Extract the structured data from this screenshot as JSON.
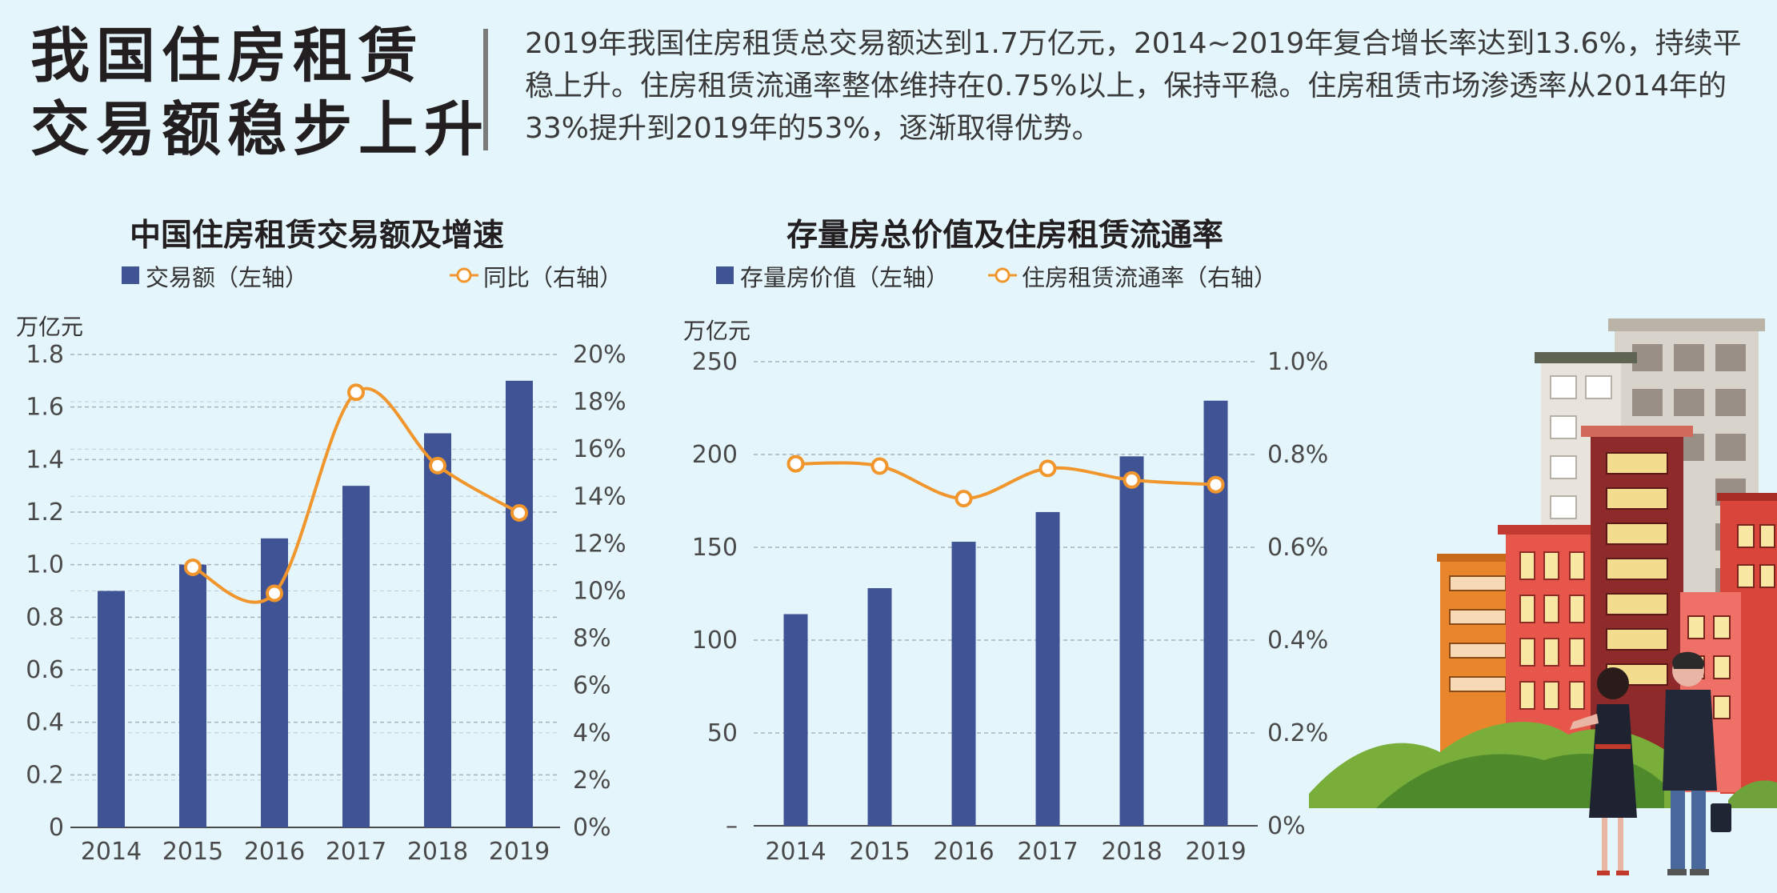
{
  "headline": {
    "line1": "我国住房租赁",
    "line2": "交易额稳步上升"
  },
  "intro": "2019年我国住房租赁总交易额达到1.7万亿元，2014~2019年复合增长率达到13.6%，持续平稳上升。住房租赁流通率整体维持在0.75%以上，保持平稳。住房租赁市场渗透率从2014年的33%提升到2019年的53%，逐渐取得优势。",
  "colors": {
    "bar": "#3f5395",
    "line": "#f0962d",
    "grid": "#a9b3b9",
    "axis": "#4a4a4a"
  },
  "chart_data": [
    {
      "type": "bar+line",
      "title": "中国住房租赁交易额及增速",
      "legend": [
        "交易额（左轴）",
        "同比（右轴）"
      ],
      "unit_left": "万亿元",
      "categories": [
        "2014",
        "2015",
        "2016",
        "2017",
        "2018",
        "2019"
      ],
      "series": [
        {
          "name": "交易额（左轴）",
          "type": "bar",
          "axis": "left",
          "values": [
            0.9,
            1.0,
            1.1,
            1.3,
            1.5,
            1.7
          ]
        },
        {
          "name": "同比（右轴）",
          "type": "line",
          "axis": "right",
          "values": [
            null,
            11.0,
            9.9,
            18.4,
            15.3,
            13.3
          ]
        }
      ],
      "ylim_left": [
        0,
        1.8
      ],
      "yticks_left": [
        "0",
        "0.2",
        "0.4",
        "0.6",
        "0.8",
        "1.0",
        "1.2",
        "1.4",
        "1.6",
        "1.8"
      ],
      "ylim_right": [
        0,
        20
      ],
      "yticks_right": [
        "0%",
        "2%",
        "4%",
        "6%",
        "8%",
        "10%",
        "12%",
        "14%",
        "16%",
        "18%",
        "20%"
      ],
      "grid": true,
      "legend_position": "top"
    },
    {
      "type": "bar+line",
      "title": "存量房总价值及住房租赁流通率",
      "legend": [
        "存量房价值（左轴）",
        "住房租赁流通率（右轴）"
      ],
      "unit_left": "万亿元",
      "categories": [
        "2014",
        "2015",
        "2016",
        "2017",
        "2018",
        "2019"
      ],
      "series": [
        {
          "name": "存量房价值（左轴）",
          "type": "bar",
          "axis": "left",
          "values": [
            114,
            128,
            153,
            169,
            199,
            229
          ]
        },
        {
          "name": "住房租赁流通率（右轴）",
          "type": "line",
          "axis": "right",
          "values": [
            0.78,
            0.775,
            0.705,
            0.77,
            0.745,
            0.735
          ]
        }
      ],
      "ylim_left": [
        0,
        250
      ],
      "yticks_left": [
        "–",
        "50",
        "100",
        "150",
        "200",
        "250"
      ],
      "ylim_right": [
        0,
        1.0
      ],
      "yticks_right": [
        "0%",
        "0.2%",
        "0.4%",
        "0.6%",
        "0.8%",
        "1.0%"
      ],
      "grid": true,
      "legend_position": "top"
    }
  ]
}
